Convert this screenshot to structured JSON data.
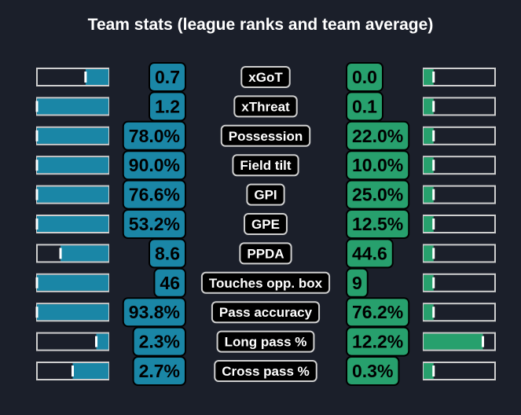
{
  "title": "Team stats (league ranks and team average)",
  "colors": {
    "background": "#1b1f2a",
    "home": "#1a86a6",
    "away": "#27a06d",
    "bar_outline": "#cfcfcf",
    "label_box": "#000000",
    "label_border": "#cfcfcf",
    "text_on_value": "#000000",
    "text_on_label": "#ffffff"
  },
  "chart_data": {
    "type": "bar",
    "title": "Team stats (league ranks and team average)",
    "categories": [
      "xGoT",
      "xThreat",
      "Possession",
      "Field tilt",
      "GPI",
      "GPE",
      "PPDA",
      "Touches opp. box",
      "Pass accuracy",
      "Long pass %",
      "Cross pass %"
    ],
    "series": [
      {
        "side": "home",
        "values": [
          "0.7",
          "1.2",
          "78.0%",
          "90.0%",
          "76.6%",
          "53.2%",
          "8.6",
          "46",
          "93.8%",
          "2.3%",
          "2.7%"
        ],
        "bar_fill": [
          0.32,
          1.0,
          1.0,
          1.0,
          1.0,
          1.0,
          0.67,
          1.0,
          1.0,
          0.17,
          0.5
        ]
      },
      {
        "side": "away",
        "values": [
          "0.0",
          "0.1",
          "22.0%",
          "10.0%",
          "25.0%",
          "12.5%",
          "44.6",
          "9",
          "76.2%",
          "12.2%",
          "0.3%"
        ],
        "bar_fill": [
          0.14,
          0.14,
          0.14,
          0.14,
          0.14,
          0.14,
          0.14,
          0.14,
          0.14,
          0.83,
          0.14
        ]
      }
    ]
  }
}
